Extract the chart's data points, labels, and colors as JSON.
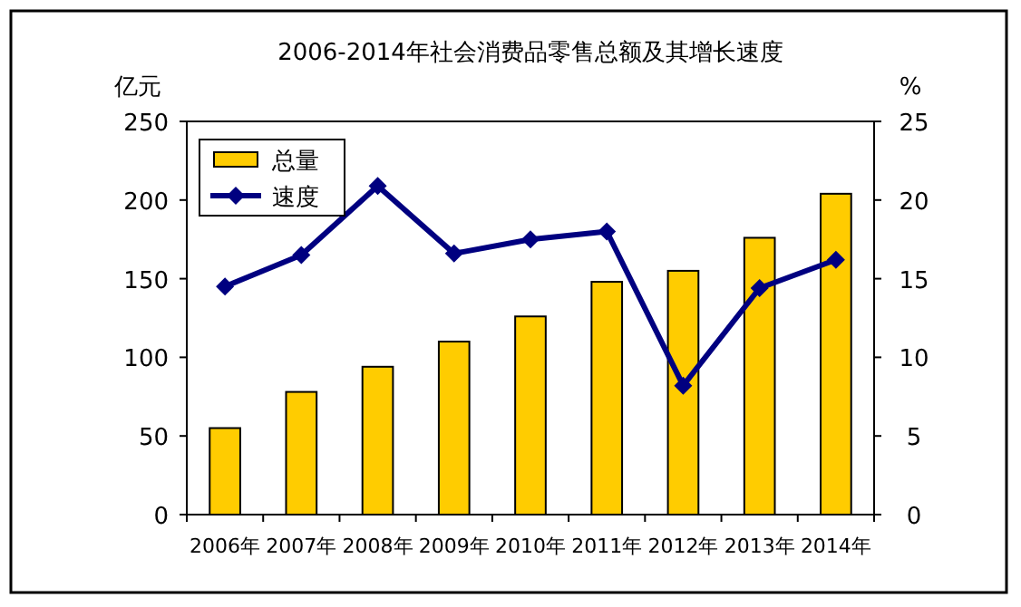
{
  "chart_data": {
    "type": "bar",
    "title": "2006-2014年社会消费品零售总额及其增长速度",
    "ylabel": "亿元",
    "y2label": "%",
    "categories": [
      "2006年",
      "2007年",
      "2008年",
      "2009年",
      "2010年",
      "2011年",
      "2012年",
      "2013年",
      "2014年"
    ],
    "series": [
      {
        "name": "总量",
        "color": "#ffcc00",
        "values": [
          55,
          78,
          94,
          110,
          126,
          148,
          155,
          176,
          204
        ]
      },
      {
        "name": "速度",
        "type": "line",
        "axis": "y2",
        "color": "#000080",
        "marker": "diamond",
        "values": [
          14.5,
          16.5,
          20.9,
          16.6,
          17.5,
          18.0,
          8.2,
          14.4,
          16.2
        ]
      }
    ],
    "ylim": [
      0,
      250
    ],
    "yticks": [
      0,
      50,
      100,
      150,
      200,
      250
    ],
    "y2lim": [
      0,
      25
    ],
    "y2ticks": [
      0,
      5,
      10,
      15,
      20,
      25
    ],
    "legend": "top left"
  }
}
